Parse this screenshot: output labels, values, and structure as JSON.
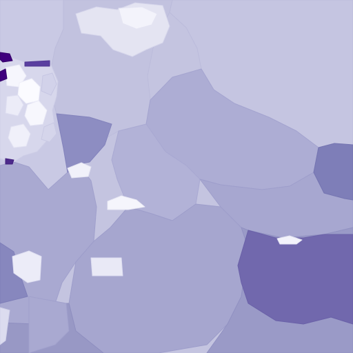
{
  "map": {
    "type": "choropleth",
    "labels_visible": false,
    "legend_visible": false,
    "color_scale": [
      "#f1f1fb",
      "#d9d9ee",
      "#c4c4e0",
      "#b1b1d6",
      "#9e9ecc",
      "#8b8bc0",
      "#7474b2",
      "#5a4aa6",
      "#3f007d"
    ],
    "background_color": "#c4c4e0",
    "region_count_visible": 24
  }
}
